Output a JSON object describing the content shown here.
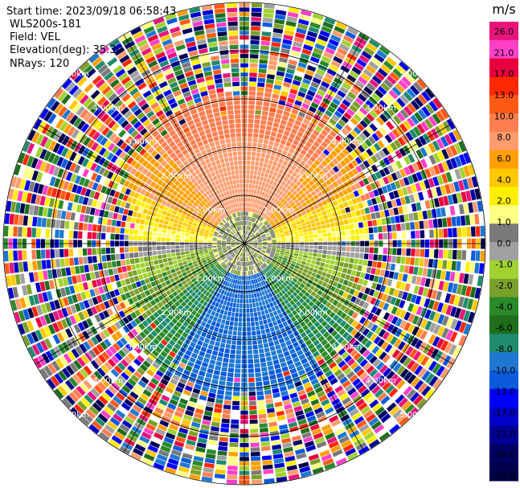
{
  "header": {
    "start_time": "Start time: 2023/09/18 06:58:43",
    "instrument": "WLS200s-181",
    "field": "Field: VEL",
    "elevation": "Elevation(deg): 35.30",
    "nrays": "NRays: 120"
  },
  "chart_data": {
    "type": "heatmap",
    "projection": "polar-ppi",
    "field": "VEL",
    "units": "m/s",
    "n_rays": 120,
    "range_ring_labels": [
      "1.00km",
      "2.00km",
      "3.00km",
      "4.00km",
      "5.00km"
    ],
    "colorbar": {
      "title": "m/s",
      "tick_labels": [
        "26.0",
        "21.0",
        "17.0",
        "13.0",
        "10.0",
        "8.0",
        "6.0",
        "4.0",
        "2.0",
        "1.0",
        "0.0",
        "-1.0",
        "-2.0",
        "-4.0",
        "-6.0",
        "-8.0",
        "-10.0",
        "-13.0",
        "-17.0",
        "-21.0",
        "-26.0",
        "-30.0"
      ],
      "colors": [
        "#e8147a",
        "#ff40c8",
        "#e8003c",
        "#ff2800",
        "#ff5a14",
        "#ff7e50",
        "#ff9c6e",
        "#ffa000",
        "#ffc800",
        "#fff000",
        "#ffff82",
        "#7a7a7a",
        "#a0a0a0",
        "#a0d232",
        "#7aa02a",
        "#2a8a2a",
        "#1e6e1e",
        "#1e8c6e",
        "#1e78d2",
        "#0a5adc",
        "#0000ff",
        "#0000c8",
        "#000096",
        "#000064",
        "#00004b"
      ]
    }
  }
}
